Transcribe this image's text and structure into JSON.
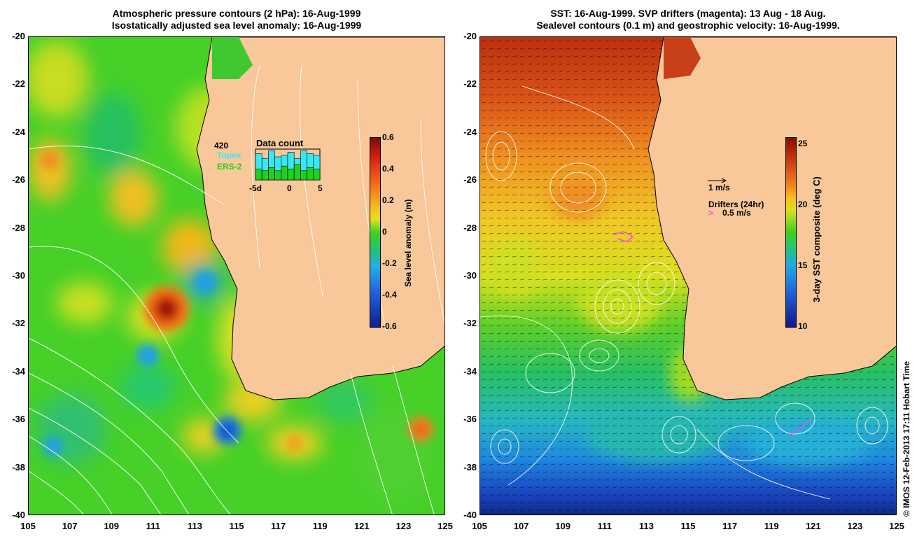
{
  "left": {
    "title_line1": "Atmospheric pressure contours (2 hPa): 16-Aug-1999",
    "title_line2": "Isostatically adjusted sea level anomaly: 16-Aug-1999",
    "x_ticks": [
      "105",
      "107",
      "109",
      "111",
      "113",
      "115",
      "117",
      "119",
      "121",
      "123",
      "125"
    ],
    "y_ticks": [
      "-20",
      "-22",
      "-24",
      "-26",
      "-28",
      "-30",
      "-32",
      "-34",
      "-36",
      "-38",
      "-40"
    ],
    "colorbar": {
      "label": "Sea level anomaly (m)",
      "ticks": [
        "0.6",
        "0.4",
        "0.2",
        "0",
        "-0.2",
        "-0.4",
        "-0.6"
      ],
      "range": [
        -0.6,
        0.6
      ]
    },
    "inset": {
      "count_label": "420",
      "title": "Data count",
      "topex_label": "Topex",
      "ers_label": "ERS-2",
      "x_ticks": [
        "-5d",
        "0",
        "5"
      ],
      "topex_color": "#38e8f0",
      "ers_color": "#20d020",
      "topex_values": [
        0.85,
        0.7,
        0.95,
        0.75,
        0.8,
        0.9,
        0.7,
        0.95,
        0.85,
        0.8
      ],
      "ers_values": [
        0.35,
        0.3,
        0.4,
        0.3,
        0.45,
        0.35,
        0.5,
        0.3,
        0.4,
        0.35
      ]
    }
  },
  "right": {
    "title_line1": "SST: 16-Aug-1999. SVP drifters (magenta): 13 Aug - 18 Aug.",
    "title_line2": "Sealevel contours (0.1 m) and geostrophic velocity: 16-Aug-1999.",
    "x_ticks": [
      "105",
      "107",
      "109",
      "111",
      "113",
      "115",
      "117",
      "119",
      "121",
      "123",
      "125"
    ],
    "y_ticks": [
      "-20",
      "-22",
      "-24",
      "-26",
      "-28",
      "-30",
      "-32",
      "-34",
      "-36",
      "-38",
      "-40"
    ],
    "colorbar": {
      "label": "3-day SST composite (deg C)",
      "ticks": [
        "25",
        "20",
        "15",
        "10"
      ],
      "range": [
        10,
        25.5
      ]
    },
    "legend_velocity": "1 m/s",
    "legend_drifters": "Drifters (24hr)",
    "legend_drifter_speed": "0.5 m/s",
    "drifter_color": "#ff40ff"
  },
  "credit": "© IMOS 12-Feb-2013 17:11 Hobart Time",
  "colors": {
    "land": "#f8c89a",
    "contour": "#ffffff"
  }
}
